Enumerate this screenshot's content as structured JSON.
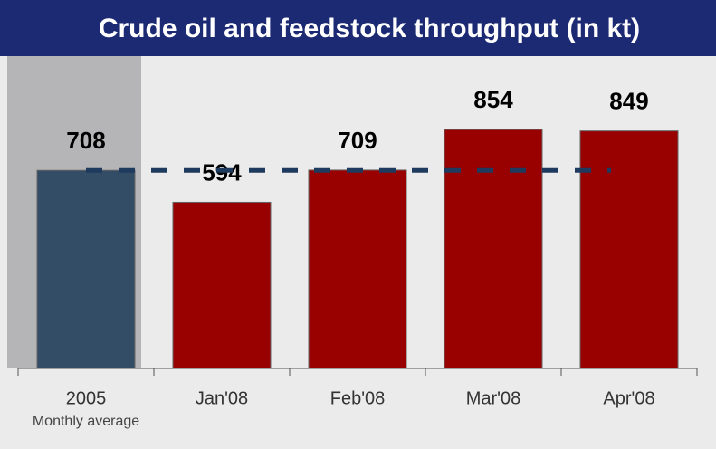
{
  "chart_data": {
    "type": "bar",
    "title": "Crude oil and feedstock throughput (in kt)",
    "categories": [
      "2005",
      "Jan'08",
      "Feb'08",
      "Mar'08",
      "Apr'08"
    ],
    "category_sublabels": [
      "Monthly average",
      null,
      null,
      null,
      null
    ],
    "values": [
      708,
      594,
      709,
      854,
      849
    ],
    "colors": [
      "#334d66",
      "#990000",
      "#990000",
      "#990000",
      "#990000"
    ],
    "highlight_color": "#b5b5b7",
    "reference_line_color": "#1f3a5f",
    "ylim": [
      0,
      1000
    ]
  }
}
